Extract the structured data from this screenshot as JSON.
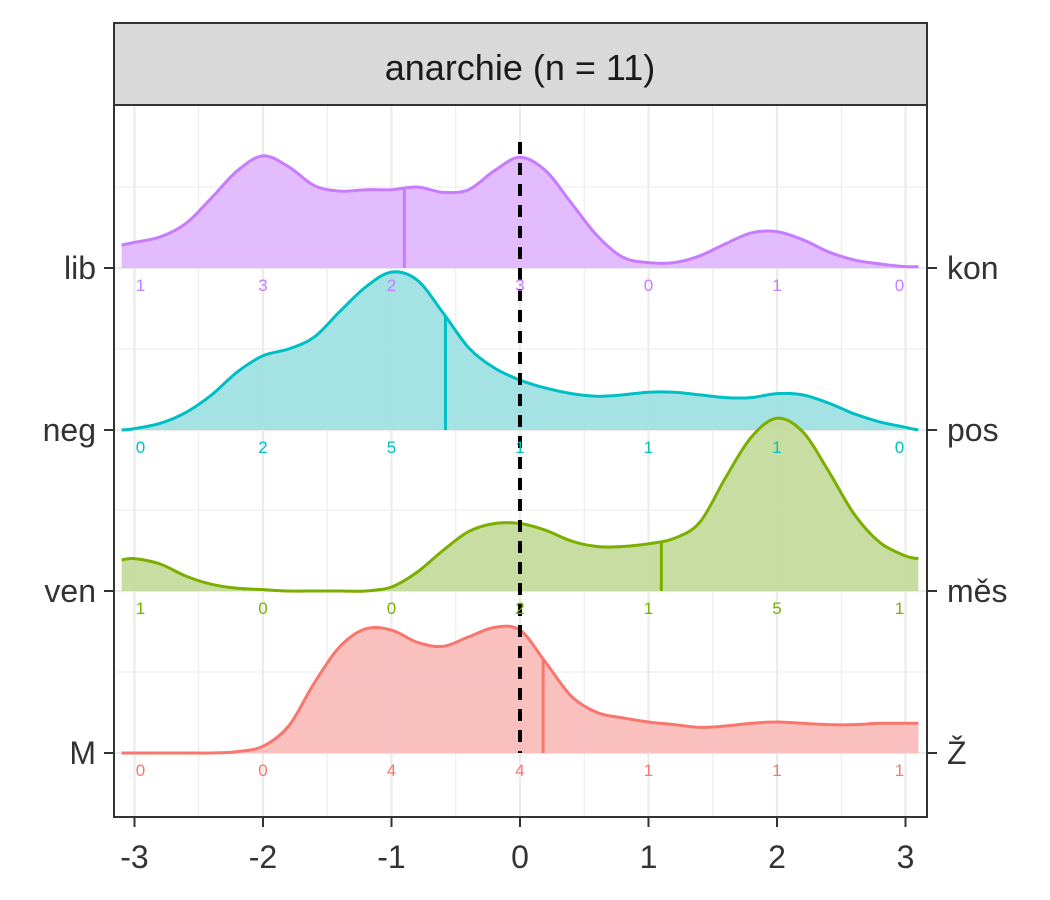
{
  "chart_data": {
    "type": "ridgeline",
    "title": "anarchie (n = 11)",
    "xlim": [
      -3.1,
      3.1
    ],
    "x_ticks": [
      -3,
      -2,
      -1,
      0,
      1,
      2,
      3
    ],
    "x_tick_labels": [
      "-3",
      "-2",
      "-1",
      "0",
      "1",
      "2",
      "3"
    ],
    "reference_line_x": 0,
    "grid": true,
    "series": [
      {
        "left_label": "lib",
        "right_label": "kon",
        "color": "#C77CFF",
        "fill": "#E1B8FF",
        "counts": [
          1,
          3,
          2,
          3,
          0,
          1,
          0
        ],
        "median": -0.9,
        "density_x": [
          -3.1,
          -3.0,
          -2.8,
          -2.6,
          -2.4,
          -2.2,
          -2.0,
          -1.8,
          -1.6,
          -1.4,
          -1.2,
          -1.0,
          -0.8,
          -0.6,
          -0.4,
          -0.2,
          0.0,
          0.2,
          0.4,
          0.6,
          0.8,
          1.0,
          1.2,
          1.4,
          1.6,
          1.8,
          2.0,
          2.2,
          2.4,
          2.6,
          2.8,
          3.0,
          3.1
        ],
        "density_y": [
          0.17,
          0.19,
          0.23,
          0.33,
          0.52,
          0.72,
          0.83,
          0.75,
          0.61,
          0.57,
          0.58,
          0.58,
          0.6,
          0.56,
          0.58,
          0.72,
          0.82,
          0.72,
          0.48,
          0.24,
          0.08,
          0.04,
          0.04,
          0.09,
          0.18,
          0.26,
          0.27,
          0.21,
          0.12,
          0.06,
          0.03,
          0.01,
          0.01
        ]
      },
      {
        "left_label": "neg",
        "right_label": "pos",
        "color": "#00BFC4",
        "fill": "#A0E0E1",
        "counts": [
          0,
          2,
          5,
          1,
          1,
          1,
          0
        ],
        "median": -0.58,
        "density_x": [
          -3.1,
          -3.0,
          -2.8,
          -2.6,
          -2.4,
          -2.2,
          -2.0,
          -1.8,
          -1.6,
          -1.4,
          -1.2,
          -1.0,
          -0.8,
          -0.6,
          -0.4,
          -0.2,
          0.0,
          0.2,
          0.4,
          0.6,
          0.8,
          1.0,
          1.2,
          1.4,
          1.6,
          1.8,
          2.0,
          2.2,
          2.4,
          2.6,
          2.8,
          3.0,
          3.1
        ],
        "density_y": [
          0.0,
          0.01,
          0.05,
          0.13,
          0.26,
          0.43,
          0.55,
          0.6,
          0.69,
          0.88,
          1.06,
          1.17,
          1.11,
          0.87,
          0.61,
          0.46,
          0.37,
          0.31,
          0.27,
          0.25,
          0.26,
          0.28,
          0.28,
          0.26,
          0.24,
          0.24,
          0.27,
          0.26,
          0.2,
          0.12,
          0.06,
          0.02,
          0.0
        ]
      },
      {
        "left_label": "ven",
        "right_label": "měs",
        "color": "#7CAE00",
        "fill": "#C5DB9C",
        "counts": [
          1,
          0,
          0,
          2,
          1,
          5,
          1
        ],
        "median": 1.1,
        "density_x": [
          -3.1,
          -3.0,
          -2.8,
          -2.6,
          -2.4,
          -2.2,
          -2.0,
          -1.8,
          -1.6,
          -1.4,
          -1.2,
          -1.0,
          -0.8,
          -0.6,
          -0.4,
          -0.2,
          0.0,
          0.2,
          0.4,
          0.6,
          0.8,
          1.0,
          1.2,
          1.4,
          1.6,
          1.8,
          2.0,
          2.2,
          2.4,
          2.6,
          2.8,
          3.0,
          3.1
        ],
        "density_y": [
          0.23,
          0.24,
          0.2,
          0.11,
          0.05,
          0.02,
          0.01,
          0.0,
          0.0,
          0.0,
          0.0,
          0.03,
          0.14,
          0.3,
          0.44,
          0.5,
          0.5,
          0.45,
          0.37,
          0.33,
          0.33,
          0.35,
          0.39,
          0.51,
          0.84,
          1.14,
          1.28,
          1.18,
          0.89,
          0.57,
          0.36,
          0.26,
          0.24
        ]
      },
      {
        "left_label": "M",
        "right_label": "Ž",
        "color": "#F8766D",
        "fill": "#F9BDBA",
        "counts": [
          0,
          0,
          4,
          4,
          1,
          1,
          1
        ],
        "median": 0.18,
        "density_x": [
          -3.1,
          -3.0,
          -2.8,
          -2.6,
          -2.4,
          -2.2,
          -2.0,
          -1.8,
          -1.6,
          -1.4,
          -1.2,
          -1.0,
          -0.8,
          -0.6,
          -0.4,
          -0.2,
          0.0,
          0.2,
          0.4,
          0.6,
          0.8,
          1.0,
          1.2,
          1.4,
          1.6,
          1.8,
          2.0,
          2.2,
          2.4,
          2.6,
          2.8,
          3.0,
          3.1
        ],
        "density_y": [
          0.0,
          0.0,
          0.0,
          0.0,
          0.0,
          0.01,
          0.05,
          0.2,
          0.52,
          0.79,
          0.92,
          0.91,
          0.82,
          0.79,
          0.86,
          0.93,
          0.91,
          0.67,
          0.42,
          0.3,
          0.26,
          0.23,
          0.21,
          0.19,
          0.2,
          0.22,
          0.23,
          0.22,
          0.21,
          0.21,
          0.22,
          0.22,
          0.22
        ]
      }
    ]
  }
}
